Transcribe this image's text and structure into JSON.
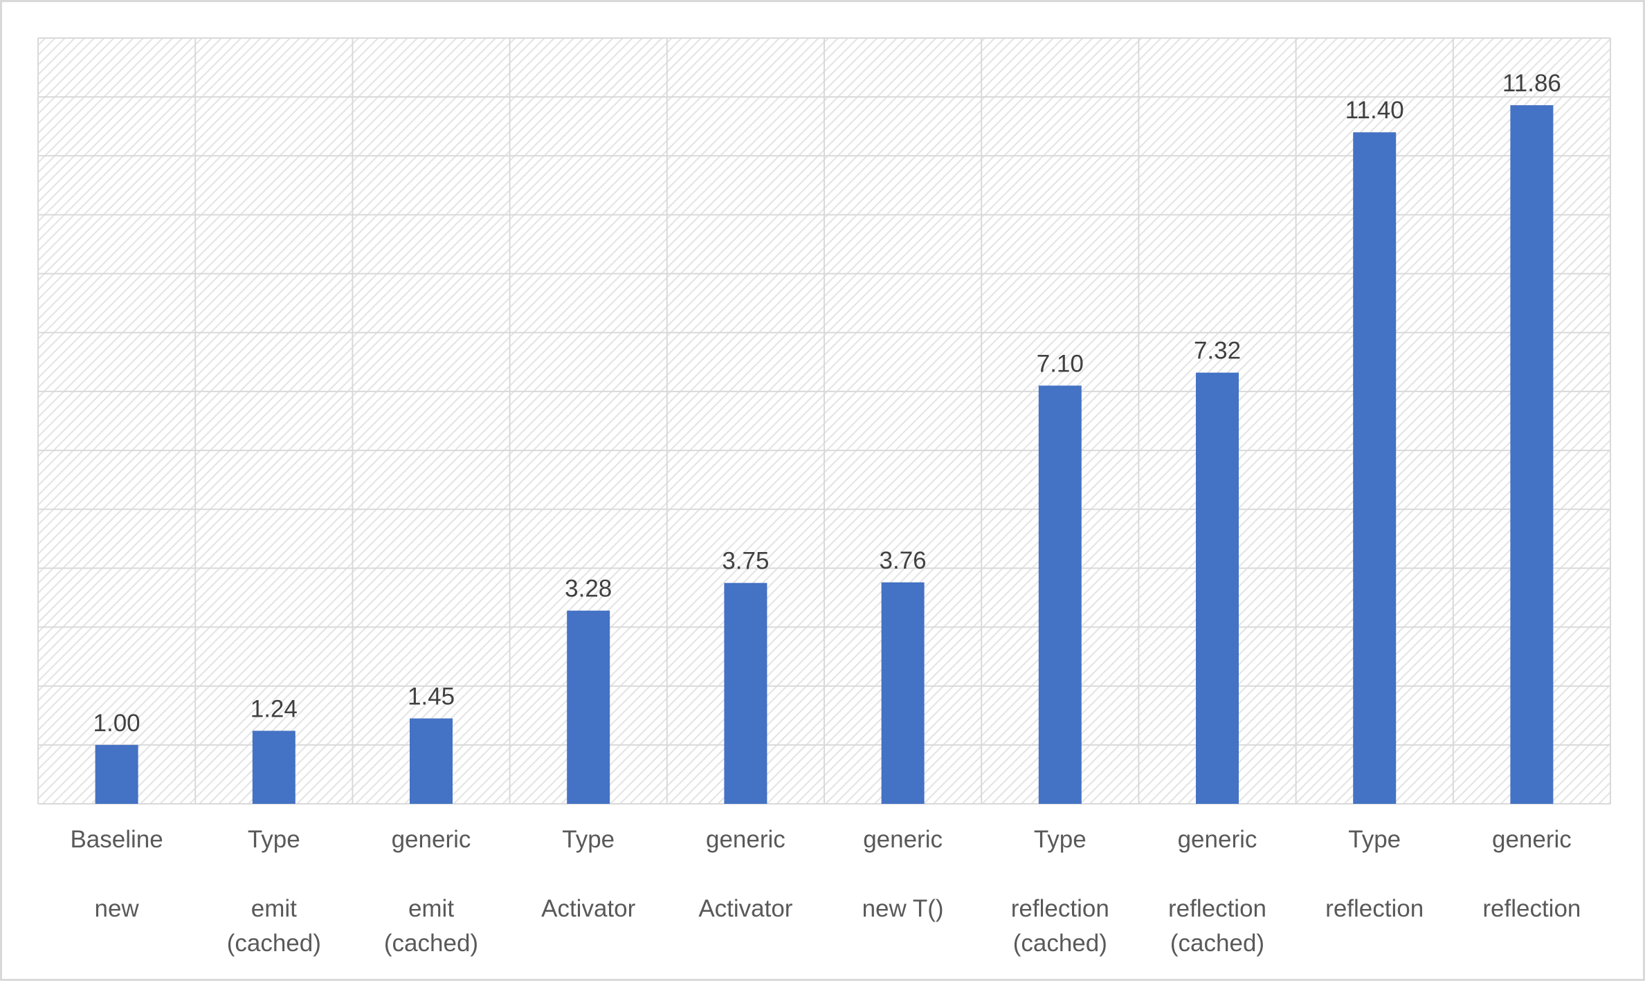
{
  "chart_data": {
    "type": "bar",
    "title": "",
    "xlabel": "",
    "ylabel": "",
    "categories": [
      [
        "Baseline",
        "new"
      ],
      [
        "Type",
        "emit",
        "(cached)"
      ],
      [
        "generic",
        "emit",
        "(cached)"
      ],
      [
        "Type",
        "Activator"
      ],
      [
        "generic",
        "Activator"
      ],
      [
        "generic",
        "new T()"
      ],
      [
        "Type",
        "reflection",
        "(cached)"
      ],
      [
        "generic",
        "reflection",
        "(cached)"
      ],
      [
        "Type",
        "reflection"
      ],
      [
        "generic",
        "reflection"
      ]
    ],
    "values": [
      1.0,
      1.24,
      1.45,
      3.28,
      3.75,
      3.76,
      7.1,
      7.32,
      11.4,
      11.86
    ],
    "value_labels": [
      "1.00",
      "1.24",
      "1.45",
      "3.28",
      "3.75",
      "3.76",
      "7.10",
      "7.32",
      "11.40",
      "11.86"
    ],
    "ylim": [
      0,
      13
    ],
    "y_axis_visible": false,
    "grid": true,
    "legend": "none",
    "colors": {
      "bar": "#4472c4",
      "grid": "#d9d9d9",
      "plot_hatch": "#e6e6e6",
      "label": "#404040",
      "tick": "#595959"
    }
  }
}
